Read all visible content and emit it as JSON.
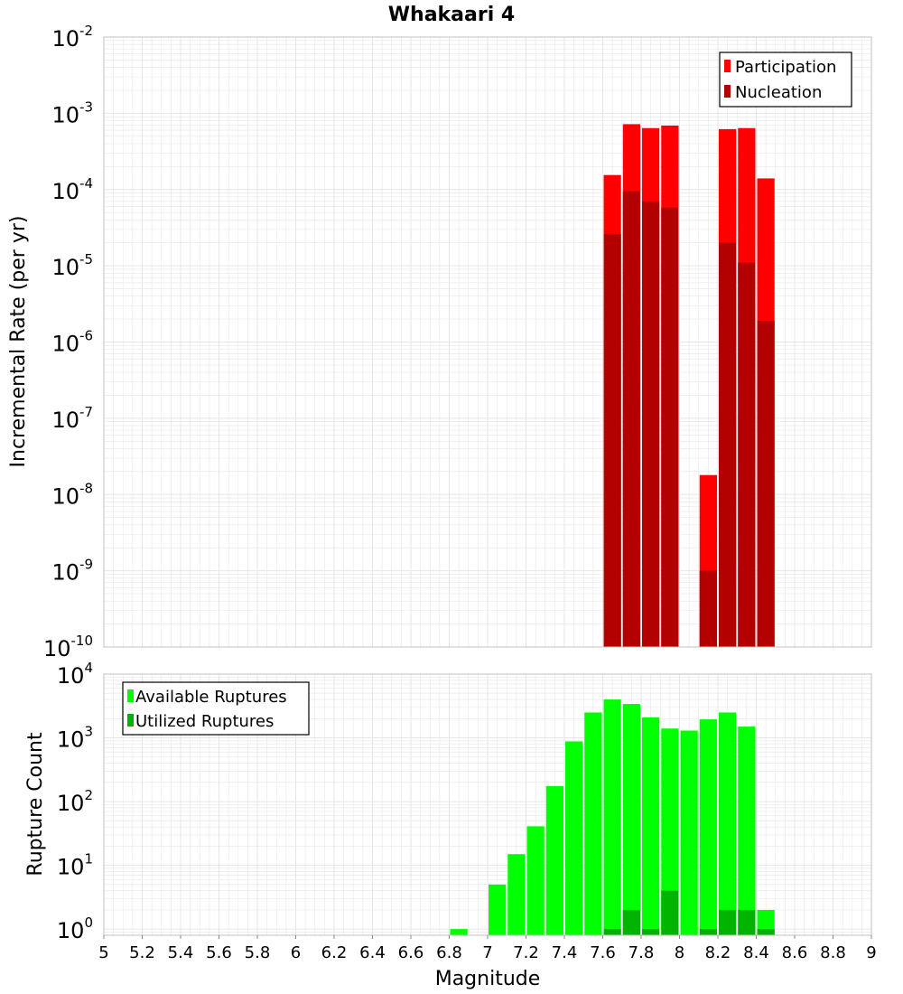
{
  "title": "Whakaari 4",
  "colors": {
    "participation": "#ff0000",
    "nucleation": "#b30000",
    "available": "#00ff00",
    "utilized": "#00b300",
    "grid": "#e6e6e6",
    "plot_border": "#c0c0c0"
  },
  "chart_data": [
    {
      "type": "bar",
      "panel": "top",
      "title": "Whakaari 4",
      "xlabel": "Magnitude",
      "ylabel": "Incremental Rate (per yr)",
      "xlim": [
        5,
        9
      ],
      "ylim": [
        1e-10,
        0.01
      ],
      "yscale": "log",
      "grid": true,
      "legend_placement": "top-right",
      "y_ticks": [
        {
          "base": "10",
          "exp": "-2",
          "value": 0.01
        },
        {
          "base": "10",
          "exp": "-3",
          "value": 0.001
        },
        {
          "base": "10",
          "exp": "-4",
          "value": 0.0001
        },
        {
          "base": "10",
          "exp": "-5",
          "value": 1e-05
        },
        {
          "base": "10",
          "exp": "-6",
          "value": 1e-06
        },
        {
          "base": "10",
          "exp": "-7",
          "value": 1e-07
        },
        {
          "base": "10",
          "exp": "-8",
          "value": 1e-08
        },
        {
          "base": "10",
          "exp": "-9",
          "value": 1e-09
        },
        {
          "base": "10",
          "exp": "-10",
          "value": 1e-10
        }
      ],
      "series": [
        {
          "name": "Participation",
          "color": "#ff0000",
          "points": [
            {
              "x": 7.65,
              "y": 0.000155
            },
            {
              "x": 7.75,
              "y": 0.00072
            },
            {
              "x": 7.85,
              "y": 0.00064
            },
            {
              "x": 7.95,
              "y": 0.00069
            },
            {
              "x": 8.15,
              "y": 1.8e-08
            },
            {
              "x": 8.25,
              "y": 0.00062
            },
            {
              "x": 8.35,
              "y": 0.00064
            },
            {
              "x": 8.45,
              "y": 0.00014
            }
          ]
        },
        {
          "name": "Nucleation",
          "color": "#b30000",
          "points": [
            {
              "x": 7.65,
              "y": 2.6e-05
            },
            {
              "x": 7.75,
              "y": 9.5e-05
            },
            {
              "x": 7.85,
              "y": 7e-05
            },
            {
              "x": 7.95,
              "y": 5.8e-05
            },
            {
              "x": 8.15,
              "y": 1e-09
            },
            {
              "x": 8.25,
              "y": 2e-05
            },
            {
              "x": 8.35,
              "y": 1.1e-05
            },
            {
              "x": 8.45,
              "y": 1.9e-06
            }
          ]
        }
      ]
    },
    {
      "type": "bar",
      "panel": "bottom",
      "xlabel": "Magnitude",
      "ylabel": "Rupture Count",
      "xlim": [
        5,
        9
      ],
      "ylim": [
        0.8,
        10000
      ],
      "yscale": "log",
      "grid": true,
      "legend_placement": "top-left",
      "y_ticks": [
        {
          "base": "10",
          "exp": "4",
          "value": 10000
        },
        {
          "base": "10",
          "exp": "3",
          "value": 1000
        },
        {
          "base": "10",
          "exp": "2",
          "value": 100
        },
        {
          "base": "10",
          "exp": "1",
          "value": 10
        },
        {
          "base": "10",
          "exp": "0",
          "value": 1
        }
      ],
      "x_ticks": [
        "5",
        "5.2",
        "5.4",
        "5.6",
        "5.8",
        "6",
        "6.2",
        "6.4",
        "6.6",
        "6.8",
        "7",
        "7.2",
        "7.4",
        "7.6",
        "7.8",
        "8",
        "8.2",
        "8.4",
        "8.6",
        "8.8",
        "9"
      ],
      "series": [
        {
          "name": "Available Ruptures",
          "color": "#00ff00",
          "points": [
            {
              "x": 6.85,
              "y": 1
            },
            {
              "x": 7.05,
              "y": 5
            },
            {
              "x": 7.15,
              "y": 15
            },
            {
              "x": 7.25,
              "y": 41
            },
            {
              "x": 7.35,
              "y": 175
            },
            {
              "x": 7.45,
              "y": 880
            },
            {
              "x": 7.55,
              "y": 2500
            },
            {
              "x": 7.65,
              "y": 4000
            },
            {
              "x": 7.75,
              "y": 3400
            },
            {
              "x": 7.85,
              "y": 2100
            },
            {
              "x": 7.95,
              "y": 1400
            },
            {
              "x": 8.05,
              "y": 1300
            },
            {
              "x": 8.15,
              "y": 1950
            },
            {
              "x": 8.25,
              "y": 2500
            },
            {
              "x": 8.35,
              "y": 1500
            },
            {
              "x": 8.45,
              "y": 2
            }
          ]
        },
        {
          "name": "Utilized Ruptures",
          "color": "#00b300",
          "points": [
            {
              "x": 7.65,
              "y": 1
            },
            {
              "x": 7.75,
              "y": 2
            },
            {
              "x": 7.85,
              "y": 1
            },
            {
              "x": 7.95,
              "y": 4
            },
            {
              "x": 8.15,
              "y": 1
            },
            {
              "x": 8.25,
              "y": 2
            },
            {
              "x": 8.35,
              "y": 2
            },
            {
              "x": 8.45,
              "y": 1
            }
          ]
        }
      ]
    }
  ]
}
